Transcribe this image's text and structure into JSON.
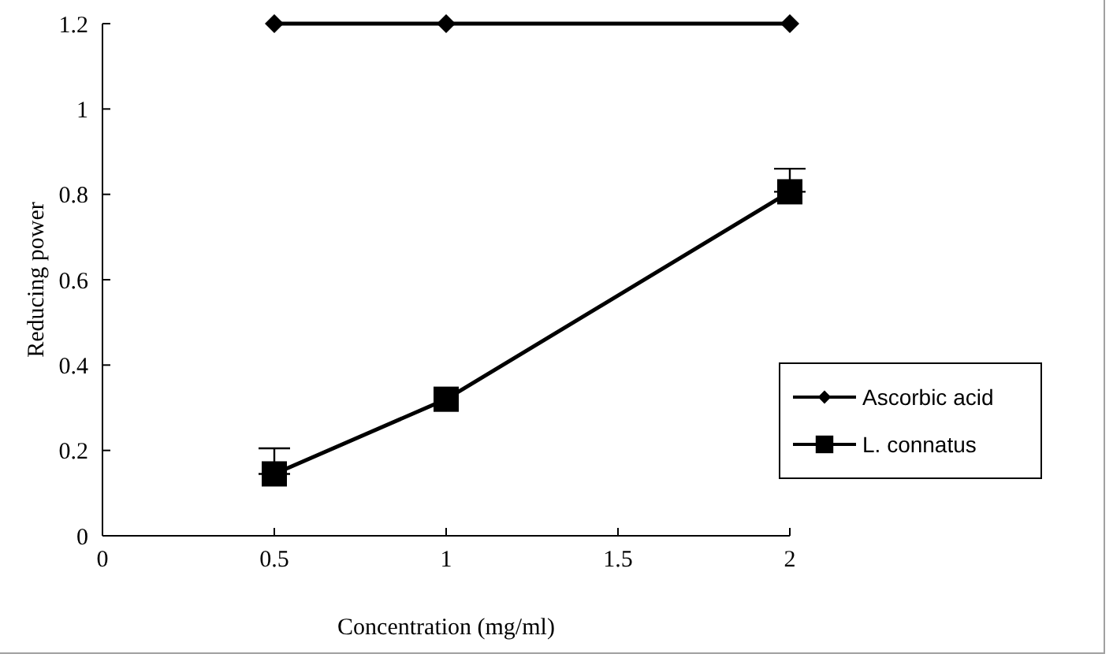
{
  "chart_data": {
    "type": "line",
    "xlabel": "Concentration (mg/ml)",
    "ylabel": "Reducing power",
    "x": [
      0.5,
      1,
      2
    ],
    "series": [
      {
        "name": "Ascorbic acid",
        "color": "#000000",
        "values": [
          1.2,
          1.2,
          1.2
        ],
        "marker": "diamond"
      },
      {
        "name": "L. connatus",
        "color": "#000000",
        "values": [
          0.145,
          0.32,
          0.806
        ],
        "errors": [
          [
            0.145,
            0.205
          ],
          null,
          [
            0.806,
            0.86
          ]
        ],
        "marker": "square"
      }
    ],
    "xlim": [
      0,
      2
    ],
    "xticks": [
      0,
      0.5,
      1,
      1.5,
      2
    ],
    "ylim": [
      0,
      1.2
    ],
    "yticks": [
      0,
      0.2,
      0.4,
      0.6,
      0.8,
      1,
      1.2
    ],
    "grid": false,
    "legend": "right",
    "line_style": "solid"
  }
}
